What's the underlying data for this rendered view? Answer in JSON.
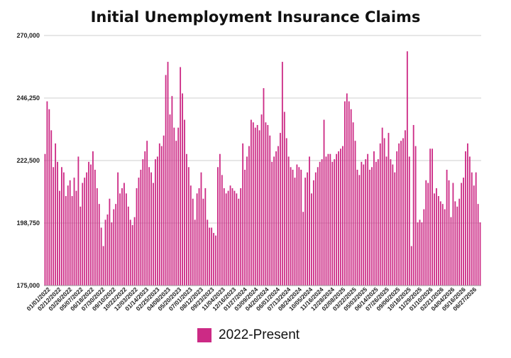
{
  "chart_data": {
    "type": "bar",
    "title": "Initial Unemployment Insurance Claims",
    "xlabel": "",
    "ylabel": "",
    "ylim": [
      175000,
      270000
    ],
    "yticks": [
      "175,000",
      "198,750",
      "222,500",
      "246,250",
      "270,000"
    ],
    "ytick_values": [
      175000,
      198750,
      222500,
      246250,
      270000
    ],
    "grid": true,
    "legend_position": "bottom-center",
    "bar_color": "#cc2a85",
    "series": [
      {
        "name": "2022-Present",
        "values": [
          225000,
          245000,
          242000,
          234000,
          220000,
          229000,
          222000,
          211000,
          220000,
          218000,
          209000,
          213000,
          215000,
          209000,
          216000,
          211000,
          224000,
          205000,
          214000,
          216000,
          218000,
          222000,
          221000,
          226000,
          219000,
          212000,
          206000,
          197000,
          190000,
          200000,
          202000,
          208000,
          199000,
          204000,
          206000,
          218000,
          210000,
          212000,
          214000,
          210000,
          205000,
          200000,
          198000,
          201000,
          212000,
          216000,
          219000,
          223000,
          226000,
          230000,
          220000,
          218000,
          214000,
          223000,
          224000,
          229000,
          228000,
          232000,
          255000,
          260000,
          240000,
          247000,
          235000,
          230000,
          235000,
          258000,
          248000,
          238000,
          225000,
          220000,
          213000,
          208000,
          200000,
          210000,
          212000,
          218000,
          208000,
          212000,
          200000,
          197000,
          197000,
          195000,
          194000,
          220000,
          225000,
          217000,
          212000,
          210000,
          211000,
          213000,
          212000,
          211000,
          210000,
          208000,
          212000,
          229000,
          219000,
          224000,
          228000,
          238000,
          237000,
          235000,
          236000,
          234000,
          240000,
          250000,
          237000,
          236000,
          232000,
          222000,
          224000,
          226000,
          228000,
          233000,
          260000,
          241000,
          231000,
          224000,
          220000,
          219000,
          216000,
          221000,
          220000,
          219000,
          203000,
          216000,
          218000,
          224000,
          210000,
          215000,
          218000,
          220000,
          222000,
          223000,
          238000,
          224000,
          225000,
          225000,
          222000,
          223000,
          225000,
          226000,
          227000,
          228000,
          245000,
          248000,
          245000,
          242000,
          237000,
          230000,
          219000,
          217000,
          222000,
          221000,
          223000,
          225000,
          219000,
          220000,
          226000,
          222000,
          223000,
          229000,
          235000,
          231000,
          224000,
          233000,
          223000,
          221000,
          218000,
          226000,
          229000,
          230000,
          231000,
          234000,
          264000,
          224000,
          190000,
          236000,
          228000,
          199000,
          200000,
          199000,
          204000,
          215000,
          214000,
          227000,
          227000,
          210000,
          212000,
          209000,
          207000,
          206000,
          204000,
          219000,
          215000,
          201000,
          214000,
          207000,
          205000,
          208000,
          214000,
          216000,
          226000,
          229000,
          224000,
          218000,
          213000,
          218000,
          206000,
          199000
        ]
      }
    ],
    "x_tick_labels": [
      "01/01/2022",
      "02/12/2022",
      "03/26/2022",
      "05/07/2022",
      "06/18/2022",
      "07/30/2022",
      "09/10/2022",
      "10/22/2022",
      "12/03/2022",
      "01/14/2023",
      "02/25/2023",
      "04/08/2023",
      "05/20/2023",
      "07/01/2023",
      "08/12/2023",
      "09/23/2023",
      "11/04/2023",
      "12/16/2023",
      "01/27/2024",
      "03/09/2024",
      "04/20/2024",
      "06/01/2024",
      "07/13/2024",
      "08/24/2024",
      "10/05/2024",
      "11/16/2024",
      "12/28/2024",
      "02/08/2025",
      "03/22/2025",
      "05/03/2025",
      "06/14/2025",
      "07/26/2025",
      "09/06/2025",
      "10/18/2025",
      "11/29/2025",
      "01/10/2026",
      "02/21/2026",
      "04/04/2026",
      "05/16/2026",
      "06/27/2026"
    ]
  }
}
